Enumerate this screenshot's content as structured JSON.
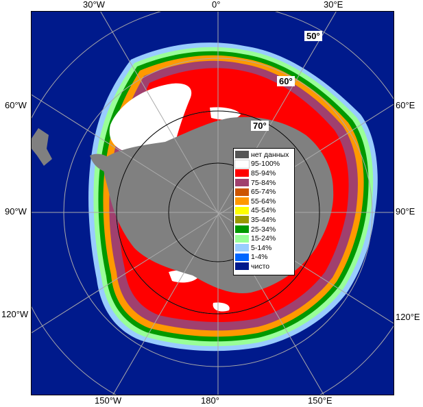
{
  "map": {
    "top_labels": [
      "30°W",
      "0°",
      "30°E"
    ],
    "left_labels": [
      "60°W",
      "90°W",
      "120°W"
    ],
    "right_labels": [
      "60°E",
      "90°E",
      "120°E"
    ],
    "bottom_labels": [
      "150°W",
      "180°",
      "150°E"
    ],
    "lat_labels": [
      "50°",
      "60°",
      "70°"
    ],
    "colors": {
      "ocean": "#001a8c",
      "land": "#808080",
      "no_data": "#555555",
      "ice_95_100": "#ffffff",
      "ice_85_94": "#ff0000",
      "ice_75_84": "#a0406e",
      "ice_65_74": "#cc5500",
      "ice_55_64": "#ff9900",
      "ice_45_54": "#ffff00",
      "ice_35_44": "#999900",
      "ice_25_34": "#009900",
      "ice_15_24": "#99ff99",
      "ice_5_14": "#99ccff",
      "ice_1_4": "#0066ff",
      "clear": "#001a8c"
    }
  },
  "legend": {
    "items": [
      {
        "label": "нет данных",
        "color": "#555555"
      },
      {
        "label": "95-100%",
        "color": "#ffffff"
      },
      {
        "label": "85-94%",
        "color": "#ff0000"
      },
      {
        "label": "75-84%",
        "color": "#a0406e"
      },
      {
        "label": "65-74%",
        "color": "#cc5500"
      },
      {
        "label": "55-64%",
        "color": "#ff9900"
      },
      {
        "label": "45-54%",
        "color": "#ffff00"
      },
      {
        "label": "35-44%",
        "color": "#999900"
      },
      {
        "label": "25-34%",
        "color": "#009900"
      },
      {
        "label": "15-24%",
        "color": "#99ff99"
      },
      {
        "label": "5-14%",
        "color": "#99ccff"
      },
      {
        "label": "1-4%",
        "color": "#0066ff"
      },
      {
        "label": "чисто",
        "color": "#001a8c"
      }
    ]
  }
}
